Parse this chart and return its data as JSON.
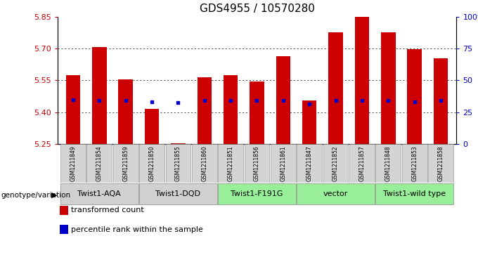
{
  "title": "GDS4955 / 10570280",
  "samples": [
    "GSM1211849",
    "GSM1211854",
    "GSM1211859",
    "GSM1211850",
    "GSM1211855",
    "GSM1211860",
    "GSM1211851",
    "GSM1211856",
    "GSM1211861",
    "GSM1211847",
    "GSM1211852",
    "GSM1211857",
    "GSM1211848",
    "GSM1211853",
    "GSM1211858"
  ],
  "red_values": [
    5.575,
    5.705,
    5.555,
    5.415,
    5.255,
    5.565,
    5.575,
    5.545,
    5.665,
    5.455,
    5.775,
    5.85,
    5.775,
    5.695,
    5.655
  ],
  "blue_values": [
    5.46,
    5.455,
    5.455,
    5.45,
    5.445,
    5.455,
    5.455,
    5.455,
    5.455,
    5.44,
    5.455,
    5.455,
    5.455,
    5.45,
    5.455
  ],
  "ylim_left": [
    5.25,
    5.85
  ],
  "ylim_right": [
    0,
    100
  ],
  "yticks_left": [
    5.25,
    5.4,
    5.55,
    5.7,
    5.85
  ],
  "yticks_right": [
    0,
    25,
    50,
    75,
    100
  ],
  "ytick_labels_right": [
    "0",
    "25",
    "50",
    "75",
    "100%"
  ],
  "groups": [
    {
      "label": "Twist1-AQA",
      "start": 0,
      "end": 3,
      "color": "#d0d0d0"
    },
    {
      "label": "Twist1-DQD",
      "start": 3,
      "end": 6,
      "color": "#d0d0d0"
    },
    {
      "label": "Twist1-F191G",
      "start": 6,
      "end": 9,
      "color": "#99ee99"
    },
    {
      "label": "vector",
      "start": 9,
      "end": 12,
      "color": "#99ee99"
    },
    {
      "label": "Twist1-wild type",
      "start": 12,
      "end": 15,
      "color": "#99ee99"
    }
  ],
  "bar_color": "#cc0000",
  "blue_color": "#0000cc",
  "bar_width": 0.55,
  "bar_base": 5.25,
  "legend_items": [
    {
      "color": "#cc0000",
      "label": "transformed count"
    },
    {
      "color": "#0000cc",
      "label": "percentile rank within the sample"
    }
  ],
  "left_axis_color": "#cc0000",
  "right_axis_color": "#0000cc",
  "bg_color": "#ffffff",
  "title_fontsize": 11,
  "tick_fontsize": 8,
  "sample_fontsize": 5.5,
  "group_fontsize": 8,
  "legend_fontsize": 8
}
